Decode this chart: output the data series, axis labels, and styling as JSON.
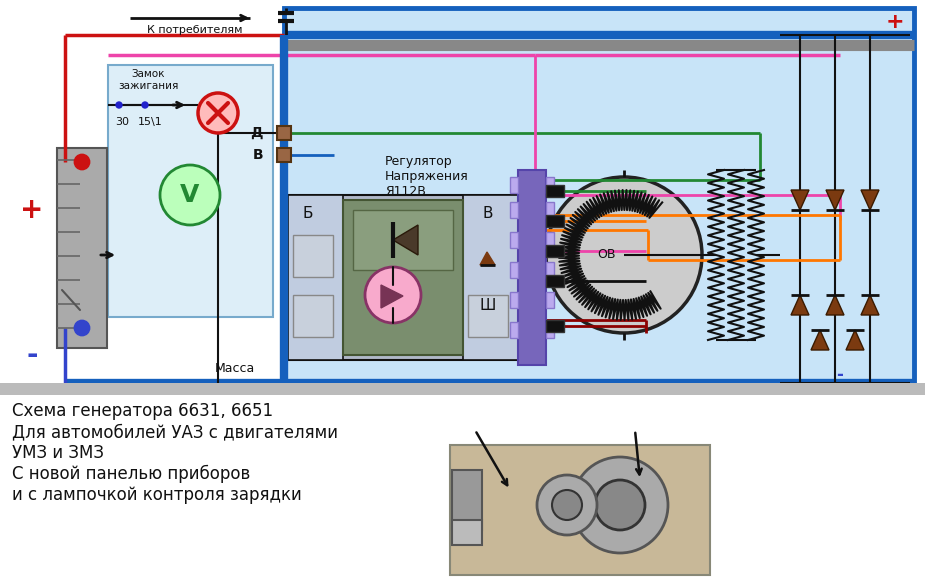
{
  "title_lines": [
    "Схема генератора 6631, 6651",
    "Для автомобилей УАЗ с двигателями",
    "УМЗ и ЗМЗ",
    "С новой панелью приборов",
    "и с лампочкой контроля зарядки"
  ],
  "bg_color": "#ffffff",
  "diag_bg": "#c8e4f8",
  "panel_bg": "#ddeeff",
  "label_k_potrebitelyam": "К потребителям",
  "label_massa": "Масса",
  "label_zamok": "Замок\nзажигания",
  "label_regulator": "Регулятор\nНапряжения\nЯ112В",
  "label_d": "Д",
  "label_v": "В",
  "label_b": "Б",
  "label_b2": "В",
  "label_sh": "Ш",
  "label_ov": "ОВ",
  "label_30": "30",
  "label_151": "15\\1",
  "label_plus": "+",
  "label_minus": "-",
  "c_blue": "#1560bd",
  "c_red": "#cc1111",
  "c_green": "#228833",
  "c_pink": "#ee44aa",
  "c_orange": "#ff7700",
  "c_black": "#111111",
  "c_gray": "#888888",
  "c_darkred": "#8B0000",
  "c_brown": "#7b3a10",
  "c_purple": "#7766bb"
}
